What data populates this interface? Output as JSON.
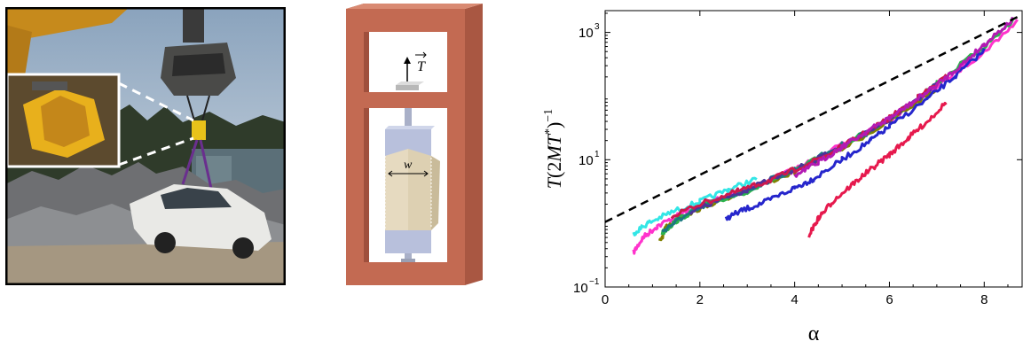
{
  "figure": {
    "diagram": {
      "force_label": "T",
      "width_label": "w"
    },
    "photo": {
      "subject": "crane lifting a car by two interleaved phone books in a scrapyard"
    }
  },
  "chart_data": {
    "type": "scatter",
    "xlabel": "α",
    "ylabel": "T(2MT*)⁻¹",
    "ylabel_parts": {
      "T": "T",
      "open": "(2",
      "M": "M",
      "Tstar": "T",
      "star": "*",
      "close": ")",
      "exp": "−1"
    },
    "x_ticks": [
      "0",
      "2",
      "4",
      "6",
      "8"
    ],
    "x_tick_values": [
      0,
      2,
      4,
      6,
      8
    ],
    "y_ticks": [
      {
        "base": "10",
        "exp": "3",
        "value": 1000
      },
      {
        "base": "10",
        "exp": "1",
        "value": 10
      },
      {
        "base": "10",
        "exp": "−1",
        "value": 0.1
      }
    ],
    "xlim": [
      0,
      8.8
    ],
    "ylim": [
      0.1,
      2200
    ],
    "y_scale": "log",
    "grid": false,
    "fit_line": {
      "style": "dashed",
      "color": "#000000",
      "x": [
        0,
        8.8
      ],
      "y": [
        1.05,
        1900
      ]
    },
    "series": [
      {
        "color": "#ff33cc",
        "points": [
          [
            0.6,
            0.35
          ],
          [
            0.8,
            0.6
          ],
          [
            1.1,
            0.9
          ],
          [
            1.6,
            1.4
          ],
          [
            2.2,
            2.2
          ],
          [
            3.0,
            3.5
          ],
          [
            4.0,
            7
          ],
          [
            5.0,
            17
          ],
          [
            6.0,
            42
          ],
          [
            7.0,
            140
          ],
          [
            8.0,
            500
          ],
          [
            8.7,
            1500
          ]
        ]
      },
      {
        "color": "#33e6e6",
        "points": [
          [
            0.6,
            0.7
          ],
          [
            0.9,
            1.0
          ],
          [
            1.4,
            1.5
          ],
          [
            2.0,
            2.2
          ],
          [
            2.6,
            3.4
          ],
          [
            3.2,
            5.0
          ]
        ]
      },
      {
        "color": "#808000",
        "points": [
          [
            1.15,
            0.5
          ],
          [
            1.3,
            0.9
          ],
          [
            1.6,
            1.3
          ],
          [
            2.2,
            2.0
          ],
          [
            3.0,
            3.3
          ],
          [
            4.0,
            6.5
          ],
          [
            5.0,
            15
          ],
          [
            6.0,
            40
          ],
          [
            7.0,
            130
          ]
        ]
      },
      {
        "color": "#2db34d",
        "points": [
          [
            1.2,
            0.7
          ],
          [
            1.5,
            1.1
          ],
          [
            2.0,
            1.8
          ],
          [
            3.0,
            3.2
          ],
          [
            4.0,
            6.8
          ],
          [
            5.0,
            16
          ],
          [
            6.0,
            45
          ],
          [
            7.0,
            160
          ],
          [
            8.0,
            600
          ],
          [
            8.6,
            1500
          ]
        ]
      },
      {
        "color": "#1a7a80",
        "points": [
          [
            1.2,
            0.75
          ],
          [
            1.6,
            1.2
          ],
          [
            2.2,
            2.0
          ],
          [
            3.0,
            3.4
          ],
          [
            4.0,
            7
          ],
          [
            5.0,
            17
          ],
          [
            5.6,
            28
          ]
        ]
      },
      {
        "color": "#4d3399",
        "points": [
          [
            1.8,
            1.5
          ],
          [
            2.4,
            2.3
          ],
          [
            3.0,
            3.4
          ],
          [
            4.0,
            6.8
          ],
          [
            5.0,
            16
          ],
          [
            6.0,
            44
          ],
          [
            7.0,
            150
          ]
        ]
      },
      {
        "color": "#2626cc",
        "points": [
          [
            2.55,
            1.2
          ],
          [
            2.9,
            1.6
          ],
          [
            3.4,
            2.2
          ],
          [
            4.0,
            3.6
          ],
          [
            4.4,
            5
          ],
          [
            5.0,
            10
          ],
          [
            5.6,
            20
          ],
          [
            6.0,
            33
          ],
          [
            6.8,
            90
          ],
          [
            7.4,
            210
          ],
          [
            8.0,
            520
          ]
        ]
      },
      {
        "color": "#cc1a4d",
        "points": [
          [
            1.4,
            1.3
          ],
          [
            2.0,
            2.0
          ],
          [
            2.8,
            3.2
          ],
          [
            3.4,
            4.5
          ],
          [
            4.0,
            7
          ],
          [
            4.8,
            13
          ],
          [
            5.4,
            24
          ],
          [
            6.0,
            45
          ],
          [
            6.6,
            95
          ],
          [
            7.2,
            200
          ]
        ]
      },
      {
        "color": "#e6194d",
        "points": [
          [
            4.3,
            0.65
          ],
          [
            4.5,
            1.2
          ],
          [
            4.8,
            2.2
          ],
          [
            5.2,
            4
          ],
          [
            5.6,
            7
          ],
          [
            6.0,
            12
          ],
          [
            6.4,
            22
          ],
          [
            6.8,
            40
          ],
          [
            7.2,
            80
          ]
        ]
      },
      {
        "color": "#b31ab3",
        "points": [
          [
            4.0,
            5.5
          ],
          [
            4.5,
            9
          ],
          [
            5.0,
            16
          ],
          [
            5.5,
            27
          ],
          [
            6.0,
            45
          ],
          [
            6.5,
            80
          ],
          [
            7.0,
            150
          ],
          [
            7.5,
            300
          ],
          [
            8.0,
            650
          ],
          [
            8.6,
            1600
          ]
        ]
      }
    ]
  }
}
